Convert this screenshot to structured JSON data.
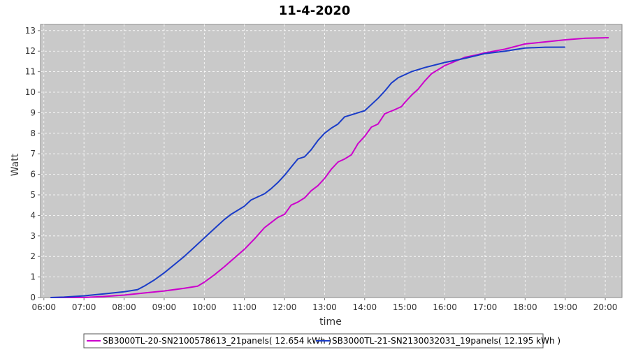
{
  "chart_data": {
    "type": "line",
    "title": "11-4-2020",
    "xlabel": "time",
    "ylabel": "Watt",
    "xlim": [
      "05:55",
      "20:25"
    ],
    "ylim": [
      0,
      13.3
    ],
    "x_ticks": [
      "06:00",
      "07:00",
      "08:00",
      "09:00",
      "10:00",
      "11:00",
      "12:00",
      "13:00",
      "14:00",
      "15:00",
      "16:00",
      "17:00",
      "18:00",
      "19:00",
      "20:00"
    ],
    "y_ticks": [
      0,
      1,
      2,
      3,
      4,
      5,
      6,
      7,
      8,
      9,
      10,
      11,
      12,
      13
    ],
    "grid": true,
    "legend_position": "bottom",
    "series": [
      {
        "name": "SB3000TL-20-SN2100578613_21panels( 12.654 kWh )",
        "color": "#cc00cc",
        "points": [
          [
            "06:10",
            0.0
          ],
          [
            "07:00",
            0.0
          ],
          [
            "07:30",
            0.05
          ],
          [
            "08:00",
            0.12
          ],
          [
            "08:30",
            0.22
          ],
          [
            "09:00",
            0.32
          ],
          [
            "09:30",
            0.45
          ],
          [
            "09:50",
            0.55
          ],
          [
            "10:00",
            0.75
          ],
          [
            "10:15",
            1.1
          ],
          [
            "10:30",
            1.5
          ],
          [
            "11:00",
            2.35
          ],
          [
            "11:15",
            2.85
          ],
          [
            "11:30",
            3.4
          ],
          [
            "11:40",
            3.65
          ],
          [
            "11:50",
            3.9
          ],
          [
            "12:00",
            4.05
          ],
          [
            "12:10",
            4.5
          ],
          [
            "12:20",
            4.65
          ],
          [
            "12:30",
            4.85
          ],
          [
            "12:40",
            5.2
          ],
          [
            "12:50",
            5.45
          ],
          [
            "13:00",
            5.8
          ],
          [
            "13:10",
            6.25
          ],
          [
            "13:20",
            6.6
          ],
          [
            "13:30",
            6.75
          ],
          [
            "13:40",
            6.95
          ],
          [
            "13:50",
            7.5
          ],
          [
            "14:00",
            7.85
          ],
          [
            "14:10",
            8.3
          ],
          [
            "14:20",
            8.45
          ],
          [
            "14:30",
            8.95
          ],
          [
            "14:45",
            9.15
          ],
          [
            "14:55",
            9.3
          ],
          [
            "15:00",
            9.5
          ],
          [
            "15:10",
            9.85
          ],
          [
            "15:20",
            10.15
          ],
          [
            "15:30",
            10.55
          ],
          [
            "15:40",
            10.9
          ],
          [
            "15:50",
            11.1
          ],
          [
            "16:00",
            11.3
          ],
          [
            "16:15",
            11.5
          ],
          [
            "16:30",
            11.7
          ],
          [
            "16:45",
            11.8
          ],
          [
            "17:00",
            11.92
          ],
          [
            "17:30",
            12.1
          ],
          [
            "18:00",
            12.35
          ],
          [
            "18:30",
            12.45
          ],
          [
            "19:00",
            12.55
          ],
          [
            "19:30",
            12.63
          ],
          [
            "20:00",
            12.65
          ],
          [
            "20:05",
            12.654
          ]
        ]
      },
      {
        "name": "SB3000TL-21-SN2130032031_19panels( 12.195 kWh )",
        "color": "#1a3cc8",
        "points": [
          [
            "06:10",
            0.0
          ],
          [
            "06:30",
            0.02
          ],
          [
            "07:00",
            0.08
          ],
          [
            "07:30",
            0.18
          ],
          [
            "08:00",
            0.28
          ],
          [
            "08:20",
            0.38
          ],
          [
            "08:30",
            0.55
          ],
          [
            "08:45",
            0.85
          ],
          [
            "09:00",
            1.2
          ],
          [
            "09:15",
            1.6
          ],
          [
            "09:30",
            2.0
          ],
          [
            "09:45",
            2.45
          ],
          [
            "10:00",
            2.9
          ],
          [
            "10:15",
            3.35
          ],
          [
            "10:30",
            3.8
          ],
          [
            "10:40",
            4.05
          ],
          [
            "10:50",
            4.25
          ],
          [
            "11:00",
            4.45
          ],
          [
            "11:10",
            4.75
          ],
          [
            "11:20",
            4.9
          ],
          [
            "11:30",
            5.05
          ],
          [
            "11:40",
            5.3
          ],
          [
            "11:50",
            5.6
          ],
          [
            "12:00",
            5.95
          ],
          [
            "12:10",
            6.35
          ],
          [
            "12:20",
            6.75
          ],
          [
            "12:30",
            6.85
          ],
          [
            "12:40",
            7.2
          ],
          [
            "12:50",
            7.65
          ],
          [
            "13:00",
            8.0
          ],
          [
            "13:10",
            8.25
          ],
          [
            "13:20",
            8.45
          ],
          [
            "13:30",
            8.8
          ],
          [
            "13:40",
            8.9
          ],
          [
            "13:50",
            9.0
          ],
          [
            "14:00",
            9.1
          ],
          [
            "14:10",
            9.4
          ],
          [
            "14:20",
            9.7
          ],
          [
            "14:30",
            10.05
          ],
          [
            "14:40",
            10.45
          ],
          [
            "14:50",
            10.7
          ],
          [
            "15:00",
            10.85
          ],
          [
            "15:10",
            11.0
          ],
          [
            "15:20",
            11.1
          ],
          [
            "15:30",
            11.2
          ],
          [
            "16:00",
            11.45
          ],
          [
            "16:30",
            11.65
          ],
          [
            "17:00",
            11.88
          ],
          [
            "17:30",
            12.0
          ],
          [
            "18:00",
            12.15
          ],
          [
            "18:30",
            12.19
          ],
          [
            "19:00",
            12.195
          ]
        ]
      }
    ]
  }
}
